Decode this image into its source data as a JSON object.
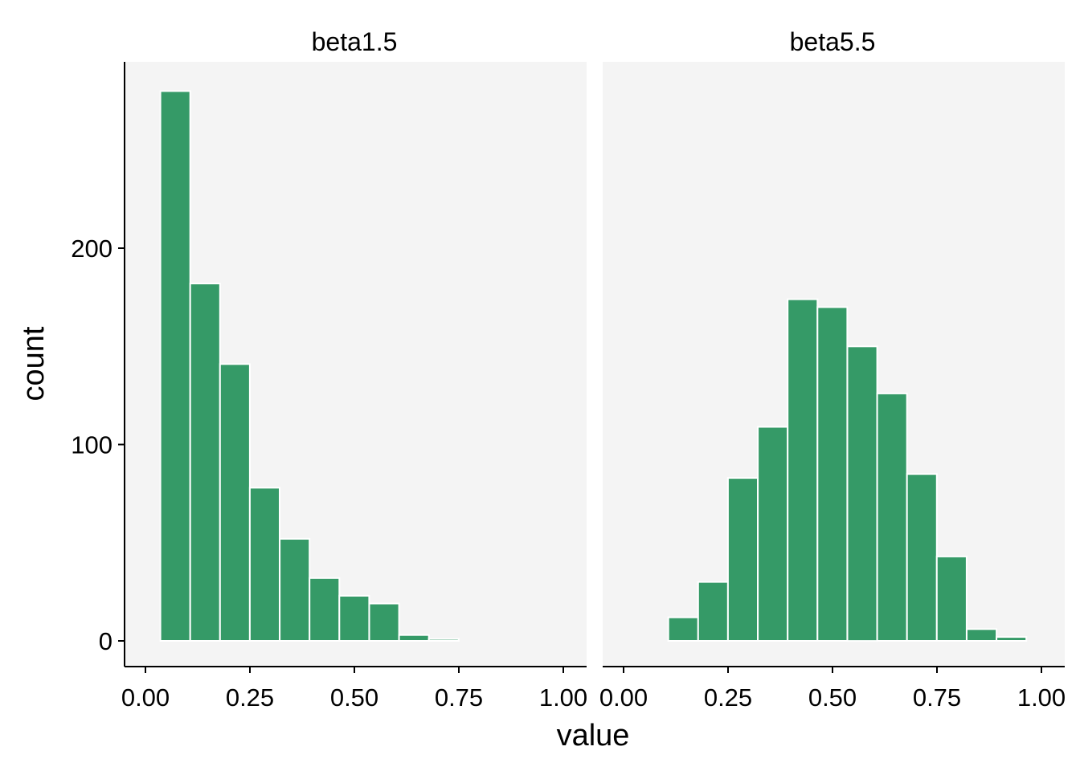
{
  "chart_data": {
    "type": "bar",
    "layout": "faceted histograms, shared y axis",
    "xlabel": "value",
    "ylabel": "count",
    "xlim": [
      0,
      1
    ],
    "ylim": [
      0,
      280
    ],
    "x_ticks": [
      0,
      0.25,
      0.5,
      0.75,
      1
    ],
    "x_tick_labels": [
      "0.00",
      "0.25",
      "0.50",
      "0.75",
      "1.00"
    ],
    "y_ticks": [
      0,
      100,
      200
    ],
    "y_tick_labels": [
      "0",
      "100",
      "200"
    ],
    "bar_color": "#359a67",
    "panel_background": "#f4f4f4",
    "bin_start": 0.0357,
    "bin_width": 0.0714,
    "panels": [
      {
        "title": "beta1.5",
        "values": [
          280,
          182,
          141,
          78,
          52,
          32,
          23,
          19,
          3,
          1,
          0,
          0,
          0
        ]
      },
      {
        "title": "beta5.5",
        "values": [
          0,
          12,
          30,
          83,
          109,
          174,
          170,
          150,
          126,
          85,
          43,
          6,
          2
        ]
      }
    ]
  }
}
